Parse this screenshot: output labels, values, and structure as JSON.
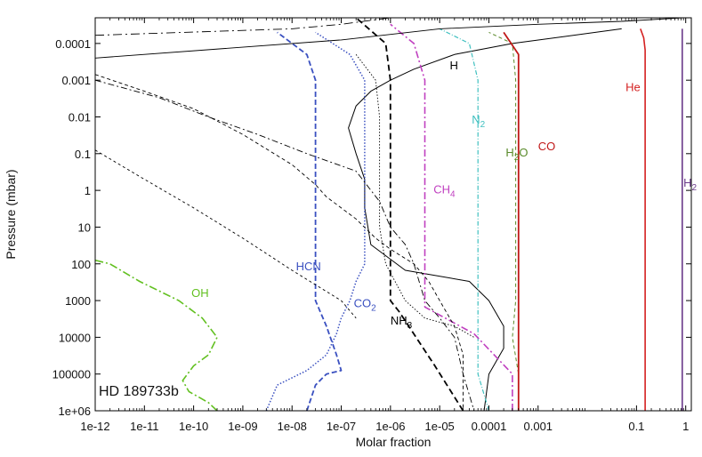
{
  "chart_data": {
    "type": "line",
    "xlabel": "Molar fraction",
    "ylabel": "Pressure (mbar)",
    "x_scale": "log",
    "y_scale": "log",
    "y_inverted": true,
    "xlim": [
      1e-12,
      1.3
    ],
    "ylim": [
      1000000,
      2e-05
    ],
    "x_ticks": [
      1e-12,
      1e-11,
      1e-10,
      1e-09,
      1e-08,
      1e-07,
      1e-06,
      1e-05,
      0.0001,
      0.001,
      0.1,
      1
    ],
    "x_tick_labels": [
      "1e-12",
      "1e-11",
      "1e-10",
      "1e-09",
      "1e-08",
      "1e-07",
      "1e-06",
      "1e-05",
      "0.0001",
      "0.001",
      "0.1",
      "1"
    ],
    "y_ticks": [
      0.0001,
      0.001,
      0.01,
      0.1,
      1,
      10,
      100,
      1000,
      10000,
      100000,
      1000000
    ],
    "y_tick_labels": [
      "0.0001",
      "0.001",
      "0.01",
      "0.1",
      "1",
      "10",
      "100",
      "1000",
      "10000",
      "100000",
      "1e+06"
    ],
    "annotation": "HD 189733b",
    "series": [
      {
        "label": "H2",
        "color": "#6a3a8a",
        "dash": "solid",
        "width": 1.6,
        "points": [
          [
            0.85,
            1000000
          ],
          [
            0.85,
            100000
          ],
          [
            0.85,
            1000
          ],
          [
            0.85,
            1
          ],
          [
            0.85,
            0.001
          ],
          [
            0.85,
            0.00015
          ],
          [
            0.85,
            4e-05
          ]
        ]
      },
      {
        "label": "He",
        "color": "#d42020",
        "dash": "solid",
        "width": 1.6,
        "points": [
          [
            0.15,
            1000000
          ],
          [
            0.15,
            100000
          ],
          [
            0.15,
            1000
          ],
          [
            0.15,
            1
          ],
          [
            0.15,
            0.001
          ],
          [
            0.15,
            0.00015
          ],
          [
            0.14,
            7e-05
          ],
          [
            0.12,
            4e-05
          ]
        ]
      },
      {
        "label": "H",
        "color": "#000000",
        "dash": "solid",
        "width": 1.0,
        "points": [
          [
            0.05,
            4e-05
          ],
          [
            0.0003,
            0.0001
          ],
          [
            2e-05,
            0.0002
          ],
          [
            3e-06,
            0.0005
          ],
          [
            1e-06,
            0.001
          ],
          [
            4e-07,
            0.002
          ],
          [
            2e-07,
            0.005
          ],
          [
            1.4e-07,
            0.02
          ],
          [
            2e-07,
            0.1
          ],
          [
            3e-07,
            0.5
          ],
          [
            3e-07,
            3
          ],
          [
            4e-07,
            30
          ],
          [
            2e-06,
            150
          ],
          [
            4e-05,
            300
          ],
          [
            0.0001,
            1000
          ],
          [
            0.0002,
            5000
          ],
          [
            0.0002,
            20000
          ],
          [
            0.0001,
            100000
          ],
          [
            8e-05,
            1000000
          ]
        ]
      },
      {
        "label": "H2O",
        "color": "#5a8a2a",
        "dash": "4,3",
        "width": 1.0,
        "points": [
          [
            0.0004,
            1000000
          ],
          [
            0.0004,
            100000
          ],
          [
            0.0003,
            10000
          ],
          [
            0.00035,
            1000
          ],
          [
            0.00035,
            100
          ],
          [
            0.00035,
            10
          ],
          [
            0.00035,
            1
          ],
          [
            0.00035,
            0.01
          ],
          [
            0.00035,
            0.001
          ],
          [
            0.0003,
            0.0001
          ],
          [
            0.0001,
            5e-05
          ]
        ]
      },
      {
        "label": "CO",
        "color": "#c01818",
        "dash": "solid",
        "width": 1.8,
        "points": [
          [
            0.0004,
            1000000
          ],
          [
            0.0004,
            10000
          ],
          [
            0.0004,
            1000
          ],
          [
            0.0004,
            100
          ],
          [
            0.0004,
            10
          ],
          [
            0.0004,
            1
          ],
          [
            0.0004,
            0.1
          ],
          [
            0.0004,
            0.01
          ],
          [
            0.0004,
            0.001
          ],
          [
            0.0004,
            0.0002
          ],
          [
            0.0002,
            5e-05
          ]
        ]
      },
      {
        "label": "N2",
        "color": "#40c0c0",
        "dash": "5,2,1,2",
        "width": 1.2,
        "points": [
          [
            0.0001,
            1000000
          ],
          [
            6e-05,
            100000
          ],
          [
            6e-05,
            10000
          ],
          [
            6e-05,
            1000
          ],
          [
            6e-05,
            100
          ],
          [
            6e-05,
            10
          ],
          [
            6e-05,
            1
          ],
          [
            6e-05,
            0.1
          ],
          [
            6e-05,
            0.01
          ],
          [
            6e-05,
            0.001
          ],
          [
            4e-05,
            0.0001
          ],
          [
            1e-05,
            4e-05
          ]
        ]
      },
      {
        "label": "CH4",
        "color": "#c040c0",
        "dash": "8,3,2,3",
        "width": 1.6,
        "points": [
          [
            0.0003,
            1000000
          ],
          [
            0.0003,
            100000
          ],
          [
            5e-05,
            8000
          ],
          [
            5e-06,
            1500
          ],
          [
            5e-06,
            100
          ],
          [
            5e-06,
            10
          ],
          [
            5e-06,
            1
          ],
          [
            5e-06,
            0.1
          ],
          [
            5e-06,
            0.01
          ],
          [
            5e-06,
            0.001
          ],
          [
            3e-06,
            0.0001
          ],
          [
            1e-06,
            3e-05
          ]
        ]
      },
      {
        "label": "NH3",
        "color": "#000000",
        "dash": "7,4",
        "width": 1.8,
        "points": [
          [
            3e-05,
            1000000
          ],
          [
            8e-06,
            60000
          ],
          [
            1.5e-06,
            2000
          ],
          [
            1e-06,
            1000
          ],
          [
            1e-06,
            100
          ],
          [
            1e-06,
            10
          ],
          [
            1e-06,
            1
          ],
          [
            1e-06,
            0.01
          ],
          [
            1e-06,
            0.001
          ],
          [
            8e-07,
            0.0001
          ],
          [
            2e-07,
            2e-05
          ]
        ]
      },
      {
        "label": "CO2",
        "color": "#3a50c0",
        "dash": "1.5,2",
        "width": 1.5,
        "points": [
          [
            3e-09,
            1000000
          ],
          [
            5e-09,
            200000
          ],
          [
            2e-08,
            80000
          ],
          [
            5e-08,
            30000
          ],
          [
            8e-08,
            8000
          ],
          [
            1e-07,
            3000
          ],
          [
            1.5e-07,
            1000
          ],
          [
            2e-07,
            300
          ],
          [
            3e-07,
            100
          ],
          [
            3e-07,
            10
          ],
          [
            3e-07,
            1
          ],
          [
            3e-07,
            0.1
          ],
          [
            3e-07,
            0.01
          ],
          [
            3e-07,
            0.001
          ],
          [
            1.5e-07,
            0.0002
          ],
          [
            3e-08,
            5e-05
          ]
        ]
      },
      {
        "label": "HCN",
        "color": "#3a50c0",
        "dash": "6,3",
        "width": 1.8,
        "points": [
          [
            2e-08,
            1000000
          ],
          [
            3e-08,
            200000
          ],
          [
            5e-08,
            100000
          ],
          [
            1e-07,
            80000
          ],
          [
            8e-08,
            30000
          ],
          [
            5e-08,
            5000
          ],
          [
            3e-08,
            1000
          ],
          [
            3e-08,
            100
          ],
          [
            3e-08,
            10
          ],
          [
            3e-08,
            1
          ],
          [
            3e-08,
            0.1
          ],
          [
            3e-08,
            0.01
          ],
          [
            3e-08,
            0.001
          ],
          [
            2e-08,
            0.0002
          ],
          [
            5e-09,
            5e-05
          ]
        ]
      },
      {
        "label": "OH",
        "color": "#62c020",
        "dash": "9,3,2,3",
        "width": 1.6,
        "points": [
          [
            3e-10,
            1000000
          ],
          [
            2e-10,
            600000
          ],
          [
            8e-11,
            300000
          ],
          [
            6e-11,
            150000
          ],
          [
            1e-10,
            60000
          ],
          [
            2e-10,
            30000
          ],
          [
            3e-10,
            10000
          ],
          [
            1.5e-10,
            3000
          ],
          [
            5e-11,
            1000
          ],
          [
            8e-12,
            300
          ],
          [
            2e-12,
            100
          ],
          [
            1e-12,
            80
          ]
        ]
      },
      {
        "label": "",
        "color": "#000000",
        "dash": "7,3,2,3",
        "width": 0.9,
        "points": [
          [
            1e-12,
            0.001
          ],
          [
            2e-11,
            0.003
          ],
          [
            2e-10,
            0.01
          ],
          [
            2e-09,
            0.03
          ],
          [
            2e-08,
            0.1
          ],
          [
            2e-07,
            0.3
          ],
          [
            6e-07,
            2
          ],
          [
            1e-06,
            10
          ],
          [
            2e-06,
            30
          ],
          [
            3e-06,
            100
          ],
          [
            5e-06,
            1000
          ],
          [
            1e-05,
            3000
          ],
          [
            2e-05,
            10000
          ],
          [
            3e-05,
            100000
          ],
          [
            5e-05,
            1000000
          ]
        ]
      },
      {
        "label": "",
        "color": "#000000",
        "dash": "4,3",
        "width": 0.9,
        "points": [
          [
            1e-12,
            0.0007
          ],
          [
            1e-11,
            0.002
          ],
          [
            1e-10,
            0.006
          ],
          [
            1e-09,
            0.03
          ],
          [
            1e-08,
            0.2
          ],
          [
            3e-08,
            0.7
          ],
          [
            5e-08,
            1.5
          ],
          [
            2e-07,
            6
          ],
          [
            5e-07,
            20
          ],
          [
            1e-06,
            40
          ],
          [
            3e-06,
            100
          ],
          [
            6e-06,
            300
          ],
          [
            1e-05,
            1000
          ],
          [
            2e-05,
            5000
          ],
          [
            3e-05,
            30000
          ],
          [
            3e-05,
            1000000
          ]
        ]
      },
      {
        "label": "",
        "color": "#000000",
        "dash": "3,3",
        "width": 0.9,
        "points": [
          [
            1e-12,
            0.08
          ],
          [
            1e-11,
            0.5
          ],
          [
            1e-10,
            3
          ],
          [
            1e-09,
            20
          ],
          [
            1e-08,
            150
          ],
          [
            1e-07,
            1000
          ],
          [
            2e-07,
            3000
          ]
        ]
      },
      {
        "label": "",
        "color": "#000000",
        "dash": "1.5,2",
        "width": 0.9,
        "points": [
          [
            2e-07,
            0.0002
          ],
          [
            5e-07,
            0.001
          ],
          [
            6e-07,
            0.01
          ],
          [
            6e-07,
            0.1
          ],
          [
            6e-07,
            1
          ],
          [
            6e-07,
            10
          ],
          [
            8e-07,
            100
          ],
          [
            2e-06,
            1000
          ],
          [
            5e-06,
            3000
          ],
          [
            2e-05,
            5000
          ],
          [
            5e-05,
            10000
          ]
        ]
      },
      {
        "label": "",
        "color": "#000000",
        "dash": "10,4,2,4",
        "width": 0.9,
        "points": [
          [
            1e-12,
            6e-05
          ],
          [
            1e-08,
            4e-05
          ],
          [
            1e-07,
            3e-05
          ],
          [
            1e-06,
            2e-05
          ]
        ]
      },
      {
        "label": "",
        "color": "#000000",
        "dash": "solid",
        "width": 0.9,
        "points": [
          [
            1e-12,
            0.00025
          ],
          [
            1e-07,
            8e-05
          ],
          [
            1e-05,
            4e-05
          ],
          [
            0.001,
            3e-05
          ],
          [
            0.05,
            2.5e-05
          ],
          [
            0.9,
            2e-05
          ]
        ]
      }
    ],
    "labels": [
      {
        "text": "H",
        "color": "#000000",
        "x": 1.6e-05,
        "y": 0.0005
      },
      {
        "text": "He",
        "color": "#d42020",
        "x": 0.06,
        "y": 0.002
      },
      {
        "text": "N",
        "sub": "2",
        "color": "#40c0c0",
        "x": 4.5e-05,
        "y": 0.015
      },
      {
        "text": "H",
        "sub": "2",
        "tail": "O",
        "color": "#5a8a2a",
        "x": 0.00022,
        "y": 0.12
      },
      {
        "text": "CO",
        "color": "#c01818",
        "x": 0.001,
        "y": 0.08
      },
      {
        "text": "H",
        "sub": "2",
        "color": "#6a3a8a",
        "x": 0.9,
        "y": 0.8
      },
      {
        "text": "CH",
        "sub": "4",
        "color": "#c040c0",
        "x": 7.5e-06,
        "y": 1.2
      },
      {
        "text": "HCN",
        "color": "#3a50c0",
        "x": 1.2e-08,
        "y": 150
      },
      {
        "text": "CO",
        "sub": "2",
        "color": "#3a50c0",
        "x": 1.8e-07,
        "y": 1500
      },
      {
        "text": "NH",
        "sub": "3",
        "color": "#000000",
        "x": 1e-06,
        "y": 4500
      },
      {
        "text": "OH",
        "color": "#62c020",
        "x": 9e-11,
        "y": 800
      }
    ]
  }
}
